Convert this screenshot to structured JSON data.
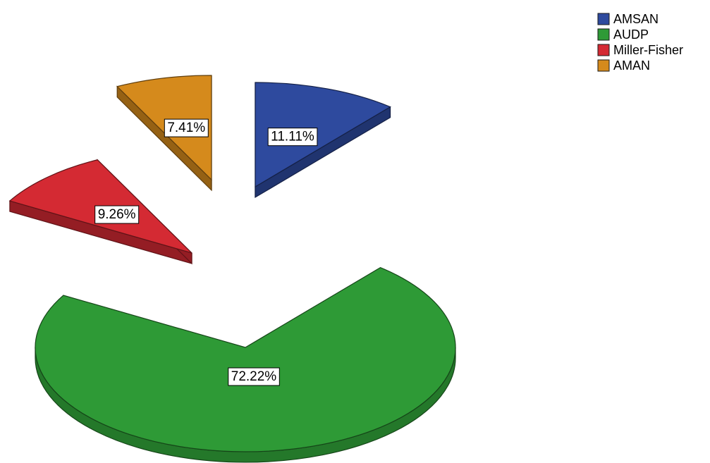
{
  "chart_data": {
    "type": "pie",
    "style": "3d-exploded",
    "title": "",
    "legend_position": "top-right",
    "slices": [
      {
        "name": "AMSAN",
        "value": 11.11,
        "label": "11.11%",
        "color": "#2E4A9E",
        "exploded": true
      },
      {
        "name": "AUDP",
        "value": 72.22,
        "label": "72.22%",
        "color": "#2E9A36",
        "exploded": false
      },
      {
        "name": "Miller-Fisher",
        "value": 9.26,
        "label": "9.26%",
        "color": "#D42A33",
        "exploded": true
      },
      {
        "name": "AMAN",
        "value": 7.41,
        "label": "7.41%",
        "color": "#D58A1C",
        "exploded": true
      }
    ]
  }
}
